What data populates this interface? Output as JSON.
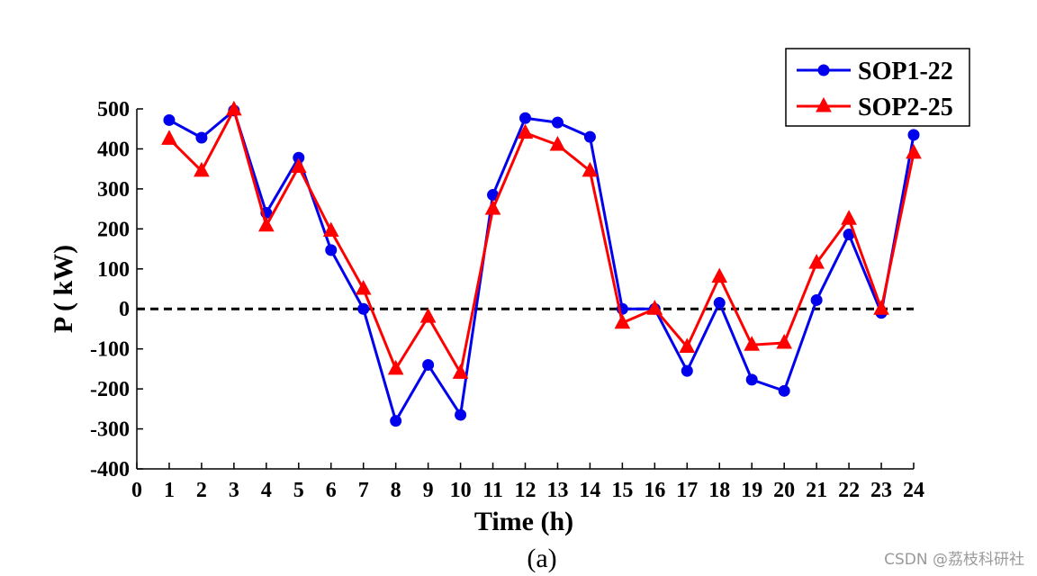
{
  "chart_data": {
    "type": "line",
    "title": "",
    "xlabel": "Time (h)",
    "ylabel": "P ( kW)",
    "xlim": [
      0,
      24
    ],
    "ylim": [
      -400,
      500
    ],
    "xticks": [
      0,
      1,
      2,
      3,
      4,
      5,
      6,
      7,
      8,
      9,
      10,
      11,
      12,
      13,
      14,
      15,
      16,
      17,
      18,
      19,
      20,
      21,
      22,
      23,
      24
    ],
    "yticks": [
      500,
      400,
      300,
      200,
      100,
      0,
      -100,
      -200,
      -300,
      -400
    ],
    "x": [
      1,
      2,
      3,
      4,
      5,
      6,
      7,
      8,
      9,
      10,
      11,
      12,
      13,
      14,
      15,
      16,
      17,
      18,
      19,
      20,
      21,
      22,
      23,
      24
    ],
    "series": [
      {
        "name": "SOP1-22",
        "color": "#0000ee",
        "marker": "circle",
        "values": [
          472,
          428,
          496,
          240,
          378,
          147,
          0,
          -280,
          -140,
          -265,
          285,
          477,
          466,
          430,
          0,
          0,
          -155,
          15,
          -177,
          -205,
          22,
          186,
          -10,
          435
        ]
      },
      {
        "name": "SOP2-25",
        "color": "#ff0000",
        "marker": "triangle",
        "values": [
          425,
          345,
          498,
          208,
          355,
          195,
          50,
          -150,
          -20,
          -160,
          250,
          440,
          410,
          345,
          -35,
          0,
          -95,
          80,
          -90,
          -85,
          115,
          225,
          0,
          390
        ]
      }
    ],
    "reference_line": {
      "y": 0,
      "style": "dashed",
      "color": "#000000"
    },
    "legend_position": "top-right",
    "caption": "(a)"
  },
  "watermark": "CSDN @荔枝科研社"
}
